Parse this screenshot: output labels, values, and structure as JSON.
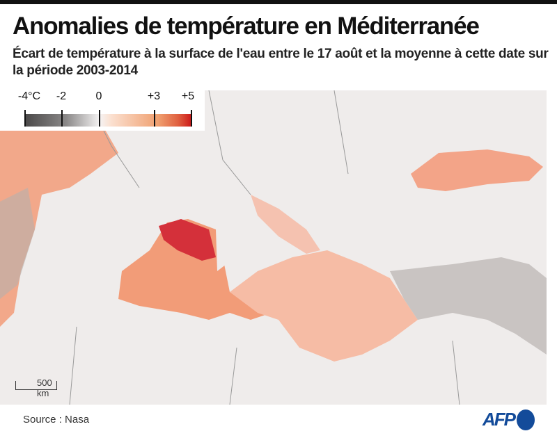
{
  "title": "Anomalies de température en Méditerranée",
  "subtitle": "Écart de température à la surface de l'eau entre le 17 août et la moyenne à cette date sur la période 2003-2014",
  "legend": {
    "labels": [
      "-4°C",
      "-2",
      "0",
      "+3",
      "+5"
    ],
    "range": [
      -4,
      5
    ],
    "colors": {
      "cold": "#4a4848",
      "zero": "#f5f3f3",
      "warm": "#f0a070",
      "hot": "#cc1a1a"
    }
  },
  "scale_label": "500 km",
  "source": "Source : Nasa",
  "logo": "AFP",
  "colors": {
    "land": "#efeceb",
    "sea_warm": "#f3a488",
    "hotspot": "#d4303a",
    "brand": "#134b9a"
  }
}
